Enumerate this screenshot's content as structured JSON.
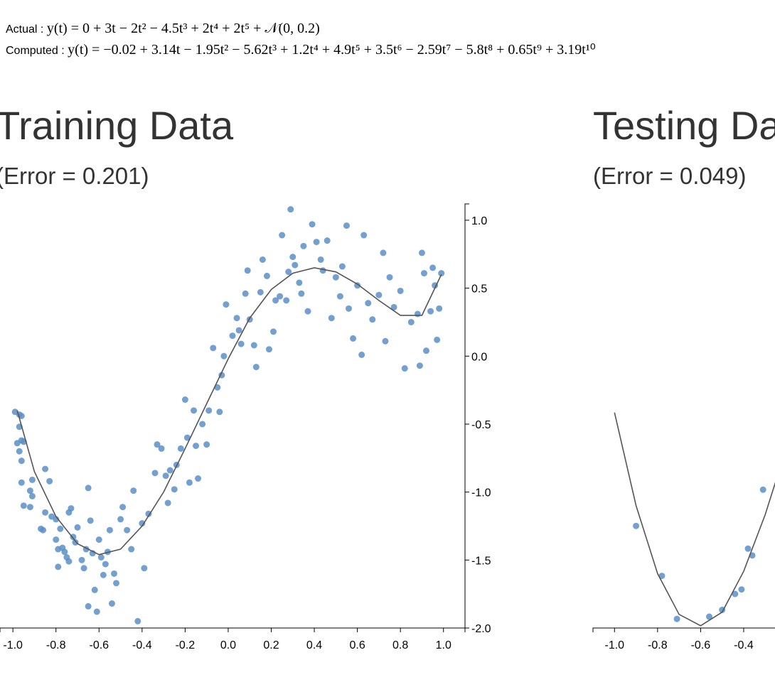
{
  "header": {
    "actual_label": "Actual : ",
    "actual_equation": "y(t) = 0 + 3t − 2t² − 4.5t³ + 2t⁴ + 2t⁵ + 𝒩(0, 0.2)",
    "computed_label": "Computed : ",
    "computed_equation": "y(t) = −0.02 + 3.14t − 1.95t² − 5.62t³ + 1.2t⁴ + 4.9t⁵ + 3.5t⁶ − 2.59t⁷ − 5.8t⁸ + 0.65t⁹ + 3.19t¹⁰"
  },
  "chart_data": [
    {
      "type": "scatter",
      "title": "Training Data",
      "subtitle": "(Error = 0.201)",
      "xlim": [
        -1.06,
        1.1
      ],
      "ylim": [
        -2.0,
        1.12
      ],
      "xticks": [
        {
          "value": -1.0,
          "label": "-1.0"
        },
        {
          "value": -0.8,
          "label": "-0.8"
        },
        {
          "value": -0.6,
          "label": "-0.6"
        },
        {
          "value": -0.4,
          "label": "-0.4"
        },
        {
          "value": -0.2,
          "label": "-0.2"
        },
        {
          "value": 0,
          "label": "0.0"
        },
        {
          "value": 0.2,
          "label": "0.2"
        },
        {
          "value": 0.4,
          "label": "0.4"
        },
        {
          "value": 0.6,
          "label": "0.6"
        },
        {
          "value": 0.8,
          "label": "0.8"
        },
        {
          "value": 1.0,
          "label": "1.0"
        }
      ],
      "yticks": [
        {
          "value": 1.0,
          "label": "1.0"
        },
        {
          "value": 0.5,
          "label": "0.5"
        },
        {
          "value": 0,
          "label": "0.0"
        },
        {
          "value": -0.5,
          "label": "-0.5"
        },
        {
          "value": -1.0,
          "label": "-1.0"
        },
        {
          "value": -1.5,
          "label": "-1.5"
        },
        {
          "value": -2.0,
          "label": "-2.0"
        }
      ],
      "series": [
        {
          "type": "scatter",
          "color": "#5b8fc7",
          "x": [
            -0.99,
            -0.97,
            -0.96,
            -0.97,
            -0.98,
            -0.96,
            -0.95,
            -0.97,
            -0.96,
            -0.96,
            -0.95,
            -0.92,
            -0.91,
            -0.92,
            -0.91,
            -0.87,
            -0.86,
            -0.85,
            -0.85,
            -0.83,
            -0.82,
            -0.8,
            -0.8,
            -0.79,
            -0.79,
            -0.78,
            -0.77,
            -0.76,
            -0.75,
            -0.74,
            -0.74,
            -0.73,
            -0.72,
            -0.71,
            -0.7,
            -0.68,
            -0.67,
            -0.66,
            -0.65,
            -0.65,
            -0.64,
            -0.63,
            -0.62,
            -0.61,
            -0.6,
            -0.59,
            -0.58,
            -0.57,
            -0.56,
            -0.55,
            -0.54,
            -0.53,
            -0.52,
            -0.5,
            -0.49,
            -0.47,
            -0.45,
            -0.44,
            -0.42,
            -0.4,
            -0.39,
            -0.37,
            -0.34,
            -0.33,
            -0.31,
            -0.29,
            -0.28,
            -0.27,
            -0.25,
            -0.24,
            -0.22,
            -0.2,
            -0.19,
            -0.18,
            -0.16,
            -0.15,
            -0.14,
            -0.12,
            -0.1,
            -0.09,
            -0.07,
            -0.05,
            -0.04,
            -0.03,
            -0.02,
            -0.01,
            0.02,
            0.04,
            0.05,
            0.06,
            0.08,
            0.09,
            0.1,
            0.12,
            0.13,
            0.15,
            0.16,
            0.18,
            0.19,
            0.21,
            0.22,
            0.24,
            0.25,
            0.27,
            0.28,
            0.29,
            0.3,
            0.31,
            0.33,
            0.34,
            0.35,
            0.37,
            0.39,
            0.41,
            0.43,
            0.44,
            0.46,
            0.48,
            0.5,
            0.52,
            0.53,
            0.55,
            0.56,
            0.58,
            0.6,
            0.62,
            0.63,
            0.65,
            0.67,
            0.7,
            0.72,
            0.73,
            0.75,
            0.77,
            0.8,
            0.82,
            0.85,
            0.88,
            0.89,
            0.9,
            0.91,
            0.92,
            0.94,
            0.95,
            0.96,
            0.97,
            0.98,
            0.99
          ],
          "values": [
            -0.41,
            -0.43,
            -0.44,
            -0.52,
            -0.64,
            -0.62,
            -0.63,
            -0.7,
            -0.77,
            -0.93,
            -1.1,
            -0.99,
            -1.03,
            -1.11,
            -0.91,
            -1.27,
            -1.28,
            -1.15,
            -0.83,
            -0.92,
            -1.18,
            -1.2,
            -1.35,
            -1.42,
            -1.55,
            -1.27,
            -1.41,
            -1.44,
            -1.48,
            -1.51,
            -1.15,
            -1.12,
            -1.33,
            -1.37,
            -1.26,
            -1.5,
            -1.56,
            -1.42,
            -1.84,
            -0.97,
            -1.21,
            -1.45,
            -1.72,
            -1.88,
            -1.35,
            -1.48,
            -1.61,
            -1.53,
            -1.44,
            -1.28,
            -1.82,
            -1.6,
            -1.67,
            -1.2,
            -1.11,
            -1.28,
            -1.42,
            -0.99,
            -1.95,
            -1.23,
            -1.56,
            -1.16,
            -0.86,
            -0.65,
            -0.68,
            -0.88,
            -1.08,
            -0.84,
            -0.98,
            -0.8,
            -0.68,
            -0.32,
            -0.6,
            -0.93,
            -0.4,
            -0.66,
            -0.9,
            -0.5,
            -0.65,
            -0.4,
            0.06,
            -0.23,
            -0.41,
            -0.14,
            0.0,
            0.38,
            0.15,
            0.28,
            0.19,
            0.09,
            0.46,
            0.63,
            0.27,
            0.08,
            -0.08,
            0.47,
            0.71,
            0.59,
            0.05,
            0.18,
            0.41,
            0.44,
            0.89,
            0.41,
            0.62,
            1.08,
            0.73,
            0.67,
            0.54,
            0.46,
            0.81,
            0.33,
            0.97,
            0.84,
            0.71,
            0.63,
            0.85,
            0.28,
            0.58,
            0.44,
            0.66,
            0.96,
            0.35,
            0.13,
            0.52,
            0.01,
            0.89,
            0.39,
            0.27,
            0.45,
            0.76,
            0.11,
            0.58,
            0.36,
            0.48,
            -0.09,
            0.25,
            0.31,
            -0.07,
            0.76,
            0.61,
            0.04,
            0.33,
            0.65,
            0.52,
            0.12,
            0.35,
            0.61
          ]
        },
        {
          "type": "line",
          "color": "#555555",
          "x": [
            -0.98,
            -0.9,
            -0.8,
            -0.7,
            -0.6,
            -0.5,
            -0.4,
            -0.3,
            -0.2,
            -0.1,
            0.0,
            0.1,
            0.2,
            0.3,
            0.4,
            0.5,
            0.6,
            0.7,
            0.8,
            0.9,
            0.99
          ],
          "values": [
            -0.4,
            -0.85,
            -1.18,
            -1.38,
            -1.46,
            -1.42,
            -1.25,
            -1.0,
            -0.68,
            -0.35,
            -0.02,
            0.28,
            0.49,
            0.61,
            0.65,
            0.62,
            0.53,
            0.41,
            0.3,
            0.3,
            0.6
          ]
        }
      ]
    },
    {
      "type": "scatter",
      "title": "Testing Data",
      "subtitle": "(Error = 0.049)",
      "xlim": [
        -1.1,
        1.06
      ],
      "ylim": [
        -1.45,
        0.42
      ],
      "xticks": [
        {
          "value": -1.0,
          "label": "-1.0"
        },
        {
          "value": -0.8,
          "label": "-0.8"
        },
        {
          "value": -0.6,
          "label": "-0.6"
        },
        {
          "value": -0.4,
          "label": "-0.4"
        }
      ],
      "series": [
        {
          "type": "scatter",
          "color": "#5b8fc7",
          "x": [
            -0.9,
            -0.78,
            -0.71,
            -0.56,
            -0.5,
            -0.44,
            -0.41,
            -0.38,
            -0.36,
            -0.31
          ],
          "values": [
            -1.0,
            -1.22,
            -1.41,
            -1.4,
            -1.37,
            -1.3,
            -1.28,
            -1.1,
            -1.13,
            -0.84
          ]
        },
        {
          "type": "line",
          "color": "#555555",
          "x": [
            -1.0,
            -0.9,
            -0.8,
            -0.7,
            -0.6,
            -0.5,
            -0.4,
            -0.3,
            -0.25
          ],
          "values": [
            -0.5,
            -0.91,
            -1.21,
            -1.39,
            -1.44,
            -1.38,
            -1.2,
            -0.95,
            -0.8
          ]
        }
      ]
    }
  ]
}
